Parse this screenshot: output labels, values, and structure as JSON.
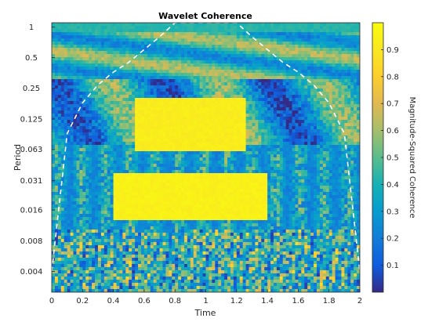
{
  "chart_data": {
    "type": "heatmap",
    "title": "Wavelet Coherence",
    "xlabel": "Time",
    "ylabel": "Period",
    "xlim": [
      0,
      2
    ],
    "x_ticks": [
      0,
      0.2,
      0.4,
      0.6,
      0.8,
      1,
      1.2,
      1.4,
      1.6,
      1.8,
      2
    ],
    "x_tick_labels": [
      "0",
      "0.2",
      "0.4",
      "0.6",
      "0.8",
      "1",
      "1.2",
      "1.4",
      "1.6",
      "1.8",
      "2"
    ],
    "y_scale": "log2",
    "ylim": [
      0.0025,
      1.1
    ],
    "y_ticks": [
      1,
      0.5,
      0.25,
      0.125,
      0.063,
      0.031,
      0.016,
      0.008,
      0.004
    ],
    "y_tick_labels": [
      "1",
      "0.5",
      "0.25",
      "0.125",
      "0.063",
      "0.031",
      "0.016",
      "0.008",
      "0.004"
    ],
    "colorbar": {
      "label": "Magnitude-Squared Coherence",
      "range": [
        0,
        1
      ],
      "ticks": [
        0.1,
        0.2,
        0.3,
        0.4,
        0.5,
        0.6,
        0.7,
        0.8,
        0.9
      ],
      "tick_labels": [
        "0.1",
        "0.2",
        "0.3",
        "0.4",
        "0.5",
        "0.6",
        "0.7",
        "0.8",
        "0.9"
      ],
      "colormap": "parula"
    },
    "regions": [
      {
        "time": [
          0.4,
          1.4
        ],
        "period": [
          0.0125,
          0.038
        ],
        "coherence": 0.97
      },
      {
        "time": [
          0.55,
          1.25
        ],
        "period": [
          0.06,
          0.2
        ],
        "coherence": 0.95
      },
      {
        "time": [
          0.0,
          2.0
        ],
        "period": [
          0.9,
          1.1
        ],
        "coherence": 0.45
      }
    ],
    "cone_of_influence": {
      "style": "dashed",
      "color": "#ffffff",
      "time": [
        0,
        0.1,
        0.2,
        0.3,
        0.4,
        0.5,
        0.6,
        0.7,
        0.8,
        0.9,
        1.0,
        1.1,
        1.2,
        1.3,
        1.4,
        1.5,
        1.6,
        1.7,
        1.8,
        1.9,
        2.0
      ],
      "period": [
        0.004,
        0.09,
        0.18,
        0.27,
        0.36,
        0.45,
        0.6,
        0.8,
        1.1,
        1.1,
        1.1,
        1.1,
        1.1,
        0.8,
        0.6,
        0.45,
        0.36,
        0.27,
        0.18,
        0.09,
        0.004
      ]
    },
    "grid": false,
    "legend": "none"
  }
}
